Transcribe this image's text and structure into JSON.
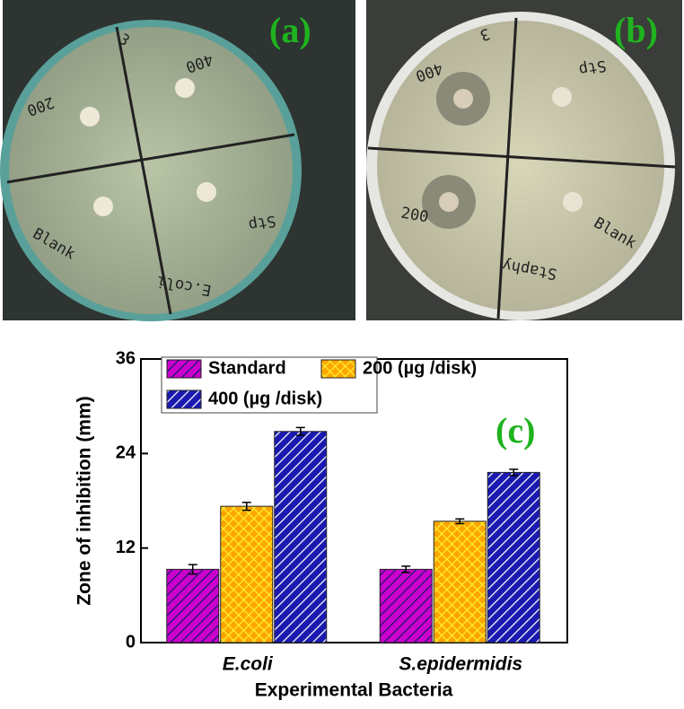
{
  "panels": {
    "a": {
      "label": "(a)",
      "notes": [
        "3",
        "400",
        "200",
        "Stp",
        "Blank",
        "E.coli"
      ]
    },
    "b": {
      "label": "(b)",
      "notes": [
        "3",
        "400",
        "Stp",
        "200",
        "Blank",
        "Staphy"
      ]
    }
  },
  "chart_data": {
    "type": "bar",
    "panel_label": "(c)",
    "x_label": "Experimental Bacteria",
    "y_label": "Zone of inhibition (mm)",
    "categories": [
      "E.coli",
      "S.epidermidis"
    ],
    "series": [
      {
        "name": "Standard",
        "color": "#cc00cc",
        "values": [
          9.3,
          9.3
        ],
        "errors": [
          0.6,
          0.4
        ]
      },
      {
        "name": "200 (µg /disk)",
        "color": "#ffa500",
        "values": [
          17.3,
          15.4
        ],
        "errors": [
          0.5,
          0.3
        ]
      },
      {
        "name": "400 (µg /disk)",
        "color": "#1a1ab0",
        "values": [
          26.8,
          21.6
        ],
        "errors": [
          0.5,
          0.4
        ]
      }
    ],
    "ylim": [
      0,
      36
    ],
    "yticks": [
      0,
      12,
      24,
      36
    ],
    "legend": "upper left"
  }
}
